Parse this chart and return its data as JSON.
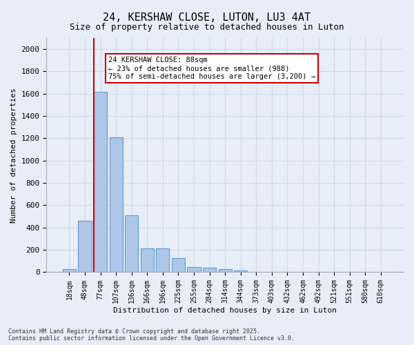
{
  "title": "24, KERSHAW CLOSE, LUTON, LU3 4AT",
  "subtitle": "Size of property relative to detached houses in Luton",
  "xlabel": "Distribution of detached houses by size in Luton",
  "ylabel": "Number of detached properties",
  "categories": [
    "18sqm",
    "48sqm",
    "77sqm",
    "107sqm",
    "136sqm",
    "166sqm",
    "196sqm",
    "225sqm",
    "255sqm",
    "284sqm",
    "314sqm",
    "344sqm",
    "373sqm",
    "403sqm",
    "432sqm",
    "462sqm",
    "492sqm",
    "521sqm",
    "551sqm",
    "580sqm",
    "610sqm"
  ],
  "values": [
    30,
    460,
    1620,
    1210,
    510,
    215,
    215,
    125,
    45,
    40,
    25,
    15,
    5,
    0,
    0,
    0,
    0,
    0,
    0,
    0,
    0
  ],
  "bar_color": "#aec6e8",
  "bar_edge_color": "#5b9bd5",
  "red_line_x": 2,
  "property_size": "88sqm",
  "annotation_text": "24 KERSHAW CLOSE: 88sqm\n← 23% of detached houses are smaller (988)\n75% of semi-detached houses are larger (3,200) →",
  "annotation_box_color": "#ffffff",
  "annotation_box_edge": "#cc0000",
  "ylim": [
    0,
    2100
  ],
  "yticks": [
    0,
    200,
    400,
    600,
    800,
    1000,
    1200,
    1400,
    1600,
    1800,
    2000
  ],
  "grid_color": "#d0d8e8",
  "background_color": "#e8eef8",
  "footnote": "Contains HM Land Registry data © Crown copyright and database right 2025.\nContains public sector information licensed under the Open Government Licence v3.0."
}
